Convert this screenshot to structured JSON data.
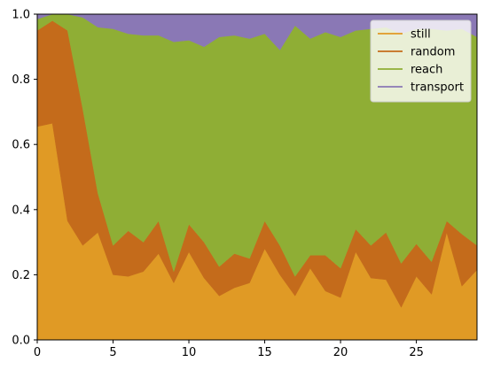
{
  "chart_data": {
    "type": "area",
    "stacked": true,
    "xlim": [
      0,
      29
    ],
    "ylim": [
      0,
      1.0
    ],
    "x_ticks": [
      0,
      5,
      10,
      15,
      20,
      25
    ],
    "y_ticks": [
      0.0,
      0.2,
      0.4,
      0.6,
      0.8,
      1.0
    ],
    "x_tick_labels": [
      "0",
      "5",
      "10",
      "15",
      "20",
      "25"
    ],
    "y_tick_labels": [
      "0.0",
      "0.2",
      "0.4",
      "0.6",
      "0.8",
      "1.0"
    ],
    "x": [
      0,
      1,
      2,
      3,
      4,
      5,
      6,
      7,
      8,
      9,
      10,
      11,
      12,
      13,
      14,
      15,
      16,
      17,
      18,
      19,
      20,
      21,
      22,
      23,
      24,
      25,
      26,
      27,
      28,
      29
    ],
    "legend": {
      "location": "top-right"
    },
    "grid": false,
    "series": [
      {
        "name": "still",
        "color": "#e09a25",
        "values": [
          0.655,
          0.665,
          0.365,
          0.29,
          0.33,
          0.2,
          0.195,
          0.21,
          0.265,
          0.175,
          0.27,
          0.19,
          0.135,
          0.16,
          0.175,
          0.28,
          0.2,
          0.135,
          0.22,
          0.15,
          0.13,
          0.27,
          0.19,
          0.185,
          0.1,
          0.195,
          0.14,
          0.33,
          0.165,
          0.215
        ]
      },
      {
        "name": "random",
        "color": "#c46b1b",
        "values": [
          0.295,
          0.315,
          0.585,
          0.42,
          0.12,
          0.09,
          0.14,
          0.09,
          0.1,
          0.035,
          0.085,
          0.11,
          0.09,
          0.105,
          0.075,
          0.085,
          0.09,
          0.06,
          0.04,
          0.11,
          0.09,
          0.07,
          0.1,
          0.145,
          0.135,
          0.1,
          0.1,
          0.035,
          0.16,
          0.075
        ]
      },
      {
        "name": "reach",
        "color": "#8fae35",
        "values": [
          0.035,
          0.02,
          0.05,
          0.28,
          0.51,
          0.665,
          0.605,
          0.635,
          0.57,
          0.705,
          0.565,
          0.6,
          0.705,
          0.67,
          0.675,
          0.575,
          0.6,
          0.77,
          0.665,
          0.685,
          0.71,
          0.61,
          0.665,
          0.63,
          0.705,
          0.66,
          0.715,
          0.585,
          0.63,
          0.64
        ]
      },
      {
        "name": "transport",
        "color": "#8a78b5",
        "values": [
          0.015,
          0.0,
          0.0,
          0.01,
          0.04,
          0.045,
          0.06,
          0.065,
          0.065,
          0.085,
          0.08,
          0.1,
          0.07,
          0.065,
          0.075,
          0.06,
          0.11,
          0.035,
          0.075,
          0.055,
          0.07,
          0.05,
          0.045,
          0.04,
          0.06,
          0.045,
          0.045,
          0.05,
          0.045,
          0.07
        ]
      }
    ]
  }
}
